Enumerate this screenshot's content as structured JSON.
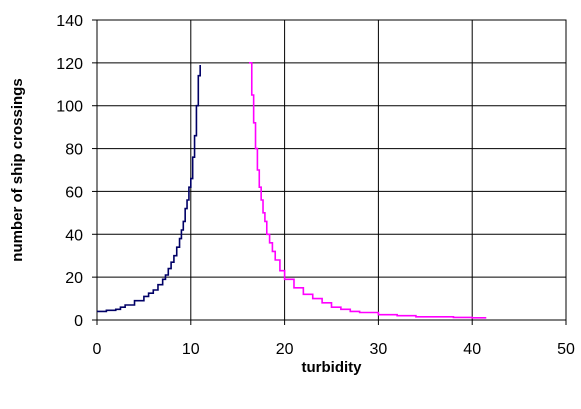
{
  "chart_data": {
    "type": "line",
    "title": "",
    "xlabel": "turbidity",
    "ylabel": "number of ship crossings",
    "xlim": [
      0,
      50
    ],
    "ylim": [
      0,
      140
    ],
    "xticks": [
      0,
      10,
      20,
      30,
      40,
      50
    ],
    "yticks": [
      0,
      20,
      40,
      60,
      80,
      100,
      120,
      140
    ],
    "grid": true,
    "legend": "none",
    "series": [
      {
        "color": "#000066",
        "step": true,
        "x": [
          0,
          1,
          2,
          2.5,
          3,
          4,
          5,
          5.5,
          6,
          6.5,
          7,
          7.3,
          7.6,
          7.9,
          8.2,
          8.5,
          8.8,
          9.0,
          9.2,
          9.4,
          9.6,
          9.8,
          10.0,
          10.2,
          10.4,
          10.6,
          10.8,
          11.0
        ],
        "y": [
          4,
          4.5,
          5,
          6,
          7,
          9,
          11,
          12.5,
          14,
          16.5,
          19,
          21,
          24,
          27,
          30,
          34,
          38,
          42,
          46,
          52,
          56,
          62,
          66,
          76,
          86,
          100,
          114,
          119
        ]
      },
      {
        "color": "#ff00ff",
        "step": true,
        "x": [
          16.2,
          16.5,
          16.7,
          16.9,
          17.1,
          17.3,
          17.5,
          17.7,
          17.9,
          18.1,
          18.4,
          18.7,
          19.0,
          19.5,
          20.0,
          21.0,
          22.0,
          23.0,
          24.0,
          25.0,
          26.0,
          27.0,
          28.0,
          30.0,
          32.0,
          34.0,
          36.0,
          38.0,
          40.0,
          41.5
        ],
        "y": [
          120,
          105,
          92,
          80,
          70,
          62,
          56,
          50,
          46,
          40,
          36,
          32,
          28,
          23,
          19,
          15,
          12,
          10,
          8,
          6,
          5,
          4,
          3.5,
          2.5,
          2,
          1.5,
          1.5,
          1.2,
          1,
          1
        ]
      }
    ]
  }
}
